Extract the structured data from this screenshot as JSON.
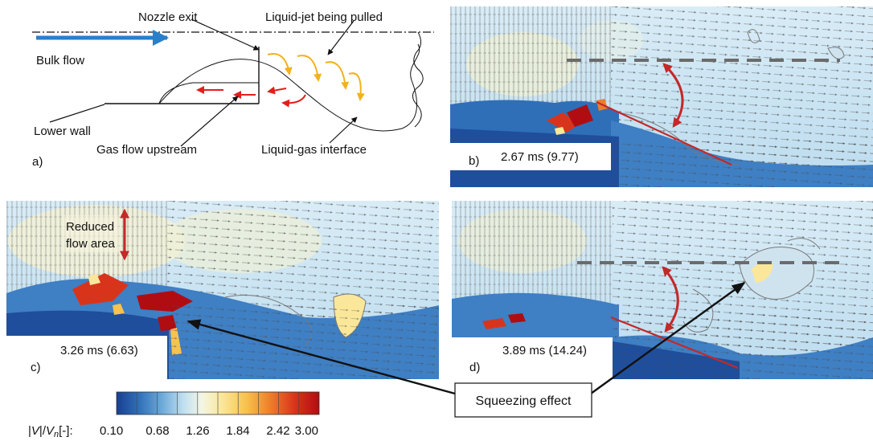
{
  "panel_a": {
    "letter": "a)",
    "labels": {
      "nozzle_exit": "Nozzle exit",
      "liquid_jet": "Liquid-jet being pulled",
      "bulk_flow": "Bulk flow",
      "lower_wall": "Lower wall",
      "gas_flow": "Gas flow upstream",
      "interface": "Liquid-gas interface"
    }
  },
  "panels": [
    {
      "letter": "b)",
      "time": "2.67 ms (9.77)"
    },
    {
      "letter": "c)",
      "time": "3.26 ms (6.63)"
    },
    {
      "letter": "d)",
      "time": "3.89 ms (14.24)"
    }
  ],
  "annotations": {
    "reduced_flow_area_line1": "Reduced",
    "reduced_flow_area_line2": "flow area",
    "squeezing_effect": "Squeezing effect"
  },
  "colorbar": {
    "label": "|V|/Vn[-]:",
    "label_parts": {
      "open": "|",
      "v": "V",
      "mid": "|/",
      "vn": "V",
      "sub": "n",
      "close": "[-]:"
    },
    "ticks": [
      "0.10",
      "0.68",
      "1.26",
      "1.84",
      "2.42",
      "3.00"
    ],
    "colors": [
      "#1a3f8f",
      "#2f6fb8",
      "#6aa8d8",
      "#bfe0ef",
      "#f3f6e6",
      "#fbe79a",
      "#f7c24e",
      "#ee7d2a",
      "#d8341b",
      "#b00d12"
    ]
  },
  "colors": {
    "bulk_arrow": "#2a7fc8",
    "liquid_arrows": "#f2b21b",
    "gas_arrows": "#e31d1d",
    "annotation_red": "#c42828"
  }
}
